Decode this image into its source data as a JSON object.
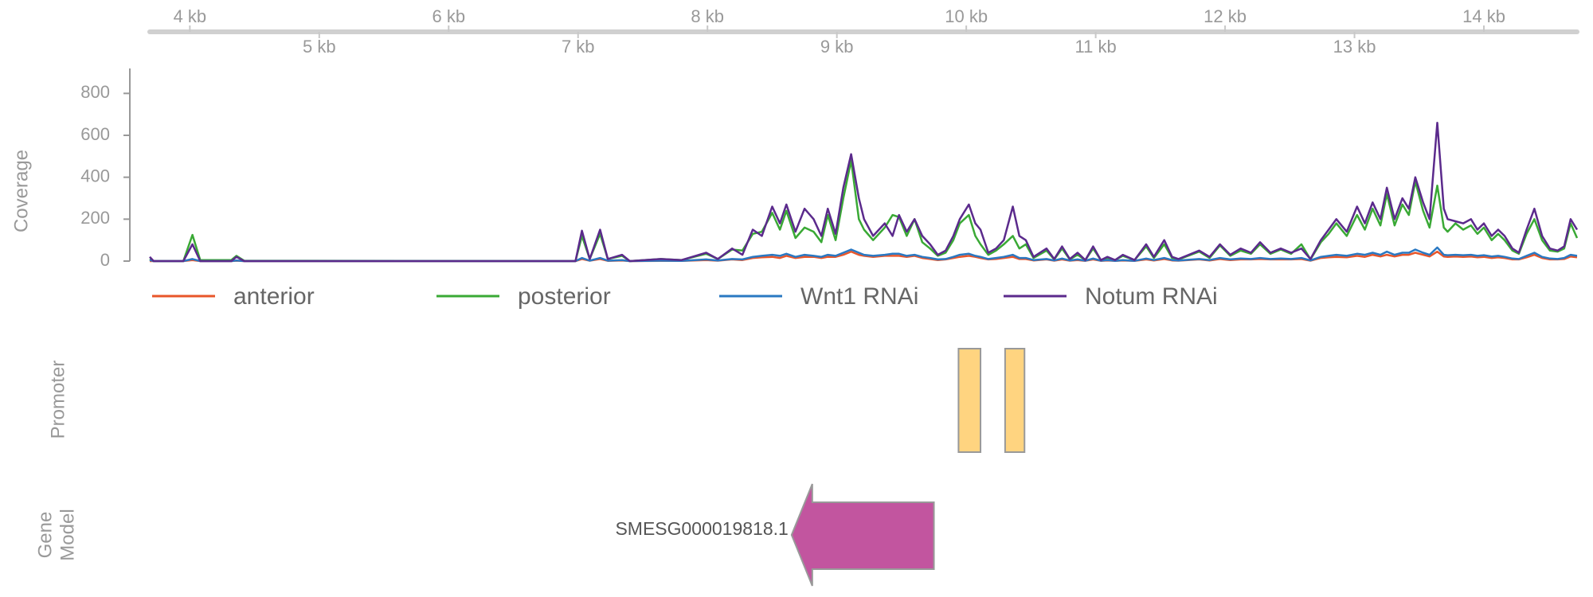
{
  "chart_data": {
    "type": "line",
    "y_label": "Coverage",
    "x": [
      3.69,
      3.72,
      3.95,
      4.02,
      4.08,
      4.32,
      4.36,
      4.42,
      6.98,
      7.03,
      7.09,
      7.17,
      7.23,
      7.34,
      7.4,
      7.64,
      7.8,
      7.99,
      8.08,
      8.19,
      8.27,
      8.35,
      8.42,
      8.5,
      8.56,
      8.61,
      8.68,
      8.75,
      8.82,
      8.88,
      8.93,
      8.99,
      9.05,
      9.11,
      9.17,
      9.21,
      9.28,
      9.37,
      9.43,
      9.48,
      9.54,
      9.6,
      9.66,
      9.72,
      9.78,
      9.84,
      9.9,
      9.95,
      10.02,
      10.07,
      10.11,
      10.17,
      10.23,
      10.29,
      10.36,
      10.41,
      10.46,
      10.52,
      10.62,
      10.68,
      10.74,
      10.8,
      10.86,
      10.92,
      10.98,
      11.04,
      11.09,
      11.15,
      11.21,
      11.3,
      11.39,
      11.45,
      11.53,
      11.59,
      11.64,
      11.8,
      11.88,
      11.96,
      12.04,
      12.12,
      12.2,
      12.27,
      12.35,
      12.43,
      12.51,
      12.59,
      12.66,
      12.74,
      12.8,
      12.86,
      12.94,
      13.02,
      13.08,
      13.14,
      13.2,
      13.25,
      13.31,
      13.37,
      13.42,
      13.47,
      13.53,
      13.58,
      13.64,
      13.69,
      13.72,
      13.78,
      13.84,
      13.9,
      13.95,
      14.0,
      14.06,
      14.11,
      14.16,
      14.22,
      14.27,
      14.33,
      14.39,
      14.45,
      14.51,
      14.57,
      14.62,
      14.67,
      14.72
    ],
    "series": [
      {
        "name": "anterior",
        "color": "#e8562a",
        "values": [
          0,
          0,
          0,
          5,
          0,
          0,
          2,
          0,
          0,
          10,
          2,
          10,
          1,
          3,
          0,
          1,
          1,
          5,
          2,
          8,
          5,
          15,
          18,
          20,
          15,
          25,
          15,
          20,
          20,
          15,
          20,
          20,
          30,
          45,
          30,
          25,
          20,
          25,
          25,
          25,
          20,
          25,
          15,
          10,
          5,
          8,
          15,
          20,
          25,
          20,
          15,
          8,
          10,
          15,
          20,
          10,
          10,
          3,
          8,
          2,
          8,
          2,
          5,
          1,
          8,
          1,
          3,
          1,
          3,
          1,
          8,
          3,
          10,
          3,
          2,
          8,
          3,
          10,
          5,
          8,
          8,
          10,
          8,
          8,
          8,
          10,
          2,
          15,
          18,
          20,
          18,
          25,
          20,
          30,
          22,
          30,
          22,
          30,
          30,
          40,
          30,
          22,
          45,
          22,
          20,
          22,
          20,
          22,
          18,
          20,
          15,
          18,
          15,
          8,
          8,
          18,
          30,
          15,
          8,
          8,
          10,
          22,
          18
        ]
      },
      {
        "name": "posterior",
        "color": "#3aa935",
        "values": [
          10,
          0,
          0,
          125,
          5,
          5,
          25,
          2,
          0,
          120,
          10,
          130,
          10,
          25,
          0,
          10,
          5,
          35,
          10,
          55,
          50,
          130,
          140,
          230,
          150,
          240,
          110,
          160,
          140,
          90,
          220,
          100,
          300,
          480,
          200,
          150,
          100,
          160,
          220,
          210,
          120,
          200,
          90,
          60,
          25,
          40,
          100,
          180,
          220,
          120,
          80,
          30,
          50,
          80,
          120,
          60,
          80,
          15,
          50,
          8,
          60,
          8,
          30,
          5,
          60,
          5,
          15,
          5,
          25,
          5,
          70,
          15,
          80,
          15,
          8,
          45,
          15,
          75,
          25,
          50,
          35,
          80,
          35,
          55,
          35,
          80,
          8,
          90,
          130,
          180,
          120,
          220,
          150,
          250,
          170,
          320,
          170,
          270,
          220,
          380,
          240,
          160,
          360,
          160,
          140,
          180,
          150,
          170,
          130,
          160,
          100,
          130,
          100,
          50,
          35,
          130,
          200,
          100,
          50,
          45,
          60,
          180,
          110
        ]
      },
      {
        "name": "Wnt1 RNAi",
        "color": "#2a78c2",
        "values": [
          5,
          0,
          0,
          10,
          0,
          0,
          3,
          0,
          0,
          15,
          2,
          15,
          2,
          5,
          0,
          2,
          1,
          8,
          3,
          10,
          8,
          20,
          25,
          30,
          25,
          35,
          20,
          30,
          25,
          20,
          30,
          25,
          40,
          55,
          40,
          30,
          25,
          30,
          35,
          35,
          25,
          30,
          20,
          15,
          8,
          10,
          20,
          30,
          35,
          25,
          20,
          10,
          15,
          20,
          30,
          15,
          15,
          5,
          10,
          3,
          12,
          3,
          8,
          2,
          12,
          2,
          5,
          1,
          5,
          1,
          12,
          5,
          15,
          5,
          3,
          10,
          5,
          15,
          8,
          12,
          10,
          15,
          10,
          12,
          10,
          15,
          3,
          20,
          25,
          30,
          25,
          35,
          30,
          40,
          30,
          45,
          30,
          40,
          40,
          55,
          40,
          30,
          65,
          30,
          28,
          30,
          28,
          30,
          25,
          28,
          22,
          25,
          20,
          12,
          10,
          25,
          40,
          20,
          12,
          10,
          15,
          30,
          25
        ]
      },
      {
        "name": "Notum RNAi",
        "color": "#5b2a8c",
        "values": [
          20,
          0,
          0,
          80,
          0,
          0,
          20,
          0,
          0,
          145,
          10,
          150,
          10,
          30,
          0,
          10,
          5,
          40,
          10,
          60,
          30,
          150,
          120,
          260,
          180,
          270,
          140,
          250,
          200,
          120,
          250,
          130,
          350,
          510,
          300,
          200,
          120,
          180,
          120,
          220,
          140,
          200,
          120,
          80,
          30,
          50,
          120,
          200,
          270,
          180,
          150,
          40,
          60,
          100,
          260,
          120,
          100,
          20,
          60,
          10,
          70,
          10,
          40,
          5,
          70,
          5,
          20,
          5,
          30,
          5,
          80,
          20,
          100,
          20,
          10,
          50,
          20,
          80,
          30,
          60,
          40,
          90,
          40,
          60,
          40,
          60,
          10,
          100,
          150,
          200,
          140,
          260,
          180,
          280,
          200,
          350,
          200,
          300,
          250,
          400,
          280,
          200,
          660,
          250,
          200,
          190,
          180,
          200,
          150,
          180,
          120,
          150,
          120,
          60,
          40,
          150,
          250,
          120,
          60,
          50,
          70,
          200,
          150
        ]
      }
    ],
    "xlim": [
      3.69,
      14.72
    ],
    "xticks": [
      {
        "value": 4,
        "label": "4 kb"
      },
      {
        "value": 5,
        "label": "5 kb"
      },
      {
        "value": 6,
        "label": "6 kb"
      },
      {
        "value": 7,
        "label": "7 kb"
      },
      {
        "value": 8,
        "label": "8 kb"
      },
      {
        "value": 9,
        "label": "9 kb"
      },
      {
        "value": 10,
        "label": "10 kb"
      },
      {
        "value": 11,
        "label": "11 kb"
      },
      {
        "value": 12,
        "label": "12 kb"
      },
      {
        "value": 13,
        "label": "13 kb"
      },
      {
        "value": 14,
        "label": "14 kb"
      }
    ],
    "ylim": [
      0,
      900
    ],
    "yticks": [
      0,
      200,
      400,
      600,
      800
    ],
    "legend": "bottom"
  },
  "tracks": {
    "promoter": {
      "label": "Promoter",
      "color": "#ffd480",
      "regions": [
        {
          "start": 9.94,
          "end": 10.11
        },
        {
          "start": 10.3,
          "end": 10.45
        }
      ]
    },
    "gene_model": {
      "label_lines": [
        "Gene",
        "Model"
      ],
      "color": "#c2559f",
      "genes": [
        {
          "name": "SMESG000019818.1",
          "start": 8.65,
          "end": 9.75,
          "strand": "-"
        }
      ]
    }
  }
}
